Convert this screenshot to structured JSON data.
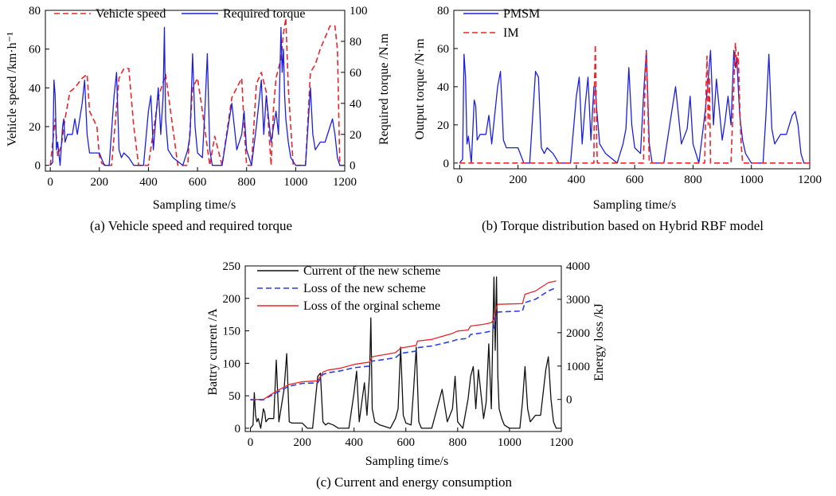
{
  "colors": {
    "red": "#e8262b",
    "blue": "#1c1fe0",
    "black": "#111111",
    "dblue": "#2b3fe8"
  },
  "captions": {
    "a": "(a) Vehicle speed and required torque",
    "b": "(b) Torque distribution based on Hybrid RBF model",
    "c": "(c) Current and energy consumption"
  },
  "chart_data": [
    {
      "id": "a",
      "type": "line",
      "xlabel": "Sampling time/s",
      "ylabel": "Vehicle speed /km·h⁻¹",
      "y2label": "Required torque /N.m",
      "xlim": [
        -20,
        1200
      ],
      "ylim": [
        -3,
        80
      ],
      "y2lim": [
        -3.75,
        100
      ],
      "xticks": [
        0,
        200,
        400,
        600,
        800,
        1000,
        1200
      ],
      "yticks": [
        0,
        20,
        40,
        60,
        80
      ],
      "y2ticks": [
        0,
        20,
        40,
        60,
        80,
        100
      ],
      "legend_position": "top",
      "series": [
        {
          "name": "Vehicle speed",
          "style": "dashed",
          "color": "#e8262b",
          "axis": "left",
          "x": [
            0,
            20,
            30,
            45,
            60,
            80,
            100,
            130,
            150,
            160,
            190,
            200,
            210,
            230,
            250,
            280,
            300,
            320,
            340,
            360,
            380,
            400,
            440,
            470,
            490,
            520,
            560,
            580,
            600,
            620,
            650,
            670,
            700,
            740,
            760,
            780,
            790,
            800,
            820,
            840,
            860,
            880,
            900,
            910,
            920,
            940,
            950,
            960,
            970,
            990,
            1000,
            1040,
            1060,
            1070,
            1080,
            1100,
            1140,
            1160,
            1170,
            1180,
            1200
          ],
          "y": [
            0,
            24,
            5,
            10,
            24,
            38,
            40,
            45,
            47,
            28,
            20,
            5,
            1,
            0,
            0,
            45,
            50,
            50,
            20,
            0,
            0,
            0,
            35,
            47,
            28,
            0,
            0,
            40,
            45,
            28,
            0,
            15,
            0,
            35,
            40,
            45,
            20,
            0,
            0,
            42,
            48,
            38,
            0,
            30,
            45,
            55,
            68,
            76,
            40,
            0,
            0,
            0,
            48,
            50,
            52,
            60,
            72,
            72,
            60,
            0,
            0
          ]
        },
        {
          "name": "Required torque",
          "style": "solid",
          "color": "#1c1fe0",
          "axis": "right",
          "x": [
            0,
            10,
            15,
            20,
            25,
            30,
            40,
            50,
            55,
            60,
            70,
            90,
            100,
            110,
            130,
            140,
            150,
            160,
            200,
            220,
            240,
            260,
            270,
            280,
            290,
            300,
            320,
            340,
            360,
            380,
            400,
            410,
            420,
            430,
            440,
            450,
            460,
            465,
            470,
            480,
            500,
            540,
            560,
            570,
            580,
            590,
            600,
            620,
            630,
            640,
            650,
            660,
            700,
            740,
            760,
            780,
            790,
            800,
            820,
            840,
            850,
            860,
            870,
            880,
            900,
            910,
            920,
            930,
            940,
            945,
            950,
            955,
            960,
            970,
            980,
            1000,
            1040,
            1050,
            1060,
            1070,
            1080,
            1100,
            1120,
            1140,
            1150,
            1160,
            1170,
            1180,
            1200
          ],
          "y": [
            0,
            2,
            55,
            45,
            10,
            15,
            0,
            25,
            30,
            15,
            20,
            20,
            30,
            20,
            40,
            55,
            20,
            8,
            8,
            0,
            0,
            45,
            60,
            10,
            5,
            8,
            5,
            0,
            0,
            0,
            35,
            45,
            10,
            30,
            50,
            20,
            45,
            89,
            30,
            10,
            5,
            0,
            10,
            20,
            72,
            25,
            8,
            5,
            35,
            72,
            10,
            0,
            0,
            40,
            10,
            20,
            35,
            10,
            0,
            25,
            40,
            55,
            20,
            45,
            15,
            25,
            35,
            20,
            89,
            60,
            75,
            45,
            30,
            15,
            5,
            0,
            0,
            25,
            50,
            20,
            10,
            15,
            15,
            25,
            30,
            20,
            5,
            0,
            0
          ]
        }
      ]
    },
    {
      "id": "b",
      "type": "line",
      "xlabel": "Sampling time/s",
      "ylabel": "Output torque /N·m",
      "xlim": [
        -20,
        1200
      ],
      "ylim": [
        -3,
        80
      ],
      "xticks": [
        0,
        200,
        400,
        600,
        800,
        1000,
        1200
      ],
      "yticks": [
        0,
        20,
        40,
        60,
        80
      ],
      "legend_position": "top-left",
      "series": [
        {
          "name": "PMSM",
          "style": "solid",
          "color": "#1c1fe0",
          "x": [
            0,
            10,
            15,
            20,
            25,
            30,
            40,
            50,
            55,
            60,
            70,
            90,
            100,
            110,
            130,
            140,
            150,
            160,
            200,
            220,
            240,
            260,
            270,
            280,
            290,
            300,
            320,
            340,
            360,
            380,
            400,
            410,
            420,
            430,
            440,
            450,
            460,
            465,
            470,
            480,
            500,
            540,
            560,
            570,
            580,
            590,
            600,
            620,
            630,
            640,
            650,
            660,
            700,
            740,
            760,
            780,
            790,
            800,
            820,
            840,
            850,
            860,
            870,
            880,
            900,
            910,
            920,
            930,
            940,
            945,
            950,
            955,
            960,
            970,
            980,
            1000,
            1040,
            1050,
            1060,
            1070,
            1080,
            1100,
            1120,
            1140,
            1150,
            1160,
            1170,
            1180,
            1200
          ],
          "y": [
            0,
            2,
            57,
            45,
            10,
            14,
            0,
            33,
            30,
            12,
            15,
            15,
            25,
            10,
            40,
            48,
            12,
            8,
            8,
            0,
            0,
            48,
            45,
            8,
            5,
            8,
            5,
            0,
            0,
            0,
            35,
            45,
            10,
            30,
            45,
            12,
            40,
            40,
            28,
            10,
            5,
            0,
            10,
            18,
            50,
            20,
            8,
            5,
            35,
            59,
            10,
            0,
            0,
            40,
            10,
            18,
            35,
            10,
            0,
            25,
            40,
            59,
            20,
            44,
            12,
            22,
            35,
            20,
            59,
            50,
            55,
            40,
            25,
            12,
            5,
            0,
            0,
            25,
            57,
            18,
            10,
            15,
            15,
            25,
            27,
            20,
            5,
            0,
            0
          ]
        },
        {
          "name": "IM",
          "style": "dashed",
          "color": "#e8262b",
          "x": [
            0,
            460,
            462,
            465,
            468,
            470,
            472,
            480,
            630,
            635,
            640,
            645,
            650,
            840,
            845,
            848,
            852,
            856,
            860,
            930,
            940,
            945,
            950,
            955,
            960,
            965,
            970,
            1200
          ],
          "y": [
            0,
            0,
            40,
            62,
            35,
            10,
            0,
            0,
            0,
            40,
            58,
            30,
            0,
            0,
            40,
            56,
            20,
            45,
            0,
            0,
            40,
            63,
            50,
            58,
            30,
            10,
            0,
            0
          ]
        }
      ]
    },
    {
      "id": "c",
      "type": "line",
      "xlabel": "Sampling time/s",
      "ylabel": "Battry current /A",
      "y2label": "Energy loss /kJ",
      "xlim": [
        -20,
        1200
      ],
      "ylim": [
        -5,
        250
      ],
      "y2lim": [
        -960,
        4000
      ],
      "xticks": [
        0,
        200,
        400,
        600,
        800,
        1000,
        1200
      ],
      "yticks": [
        0,
        50,
        100,
        150,
        200,
        250
      ],
      "y2ticks": [
        0,
        1000,
        2000,
        3000,
        4000
      ],
      "legend_position": "top-left",
      "series": [
        {
          "name": "Current of the new scheme",
          "style": "solid",
          "color": "#111111",
          "axis": "left",
          "x": [
            0,
            10,
            15,
            20,
            25,
            30,
            40,
            50,
            55,
            60,
            70,
            90,
            100,
            110,
            130,
            140,
            150,
            160,
            200,
            220,
            240,
            260,
            270,
            280,
            290,
            300,
            320,
            340,
            360,
            380,
            400,
            410,
            420,
            430,
            440,
            450,
            460,
            465,
            470,
            480,
            500,
            540,
            560,
            570,
            580,
            590,
            600,
            620,
            630,
            640,
            650,
            660,
            700,
            740,
            760,
            780,
            790,
            800,
            820,
            840,
            850,
            860,
            870,
            880,
            900,
            910,
            920,
            930,
            940,
            945,
            950,
            955,
            960,
            970,
            980,
            1000,
            1040,
            1050,
            1060,
            1070,
            1080,
            1100,
            1120,
            1140,
            1150,
            1160,
            1170,
            1180,
            1200
          ],
          "y": [
            0,
            5,
            55,
            20,
            10,
            15,
            0,
            30,
            25,
            10,
            15,
            15,
            105,
            10,
            60,
            115,
            10,
            8,
            8,
            0,
            0,
            80,
            85,
            10,
            5,
            8,
            5,
            0,
            0,
            0,
            55,
            88,
            10,
            40,
            70,
            20,
            85,
            170,
            30,
            10,
            5,
            0,
            15,
            30,
            125,
            20,
            8,
            5,
            60,
            125,
            10,
            0,
            0,
            60,
            10,
            30,
            80,
            10,
            0,
            45,
            80,
            95,
            30,
            90,
            15,
            40,
            130,
            30,
            233,
            120,
            233,
            80,
            30,
            15,
            5,
            0,
            0,
            40,
            95,
            30,
            10,
            20,
            20,
            90,
            110,
            45,
            10,
            0,
            0
          ]
        },
        {
          "name": "Loss of the new scheme",
          "style": "dashed",
          "color": "#2b3fe8",
          "axis": "right",
          "x": [
            0,
            50,
            100,
            150,
            200,
            260,
            280,
            300,
            350,
            400,
            460,
            470,
            500,
            560,
            580,
            640,
            645,
            700,
            780,
            800,
            840,
            850,
            900,
            930,
            940,
            950,
            955,
            1050,
            1060,
            1100,
            1150,
            1180
          ],
          "y": [
            -10,
            -10,
            200,
            400,
            480,
            500,
            750,
            800,
            860,
            950,
            1000,
            1150,
            1180,
            1250,
            1380,
            1450,
            1550,
            1600,
            1750,
            1800,
            1830,
            1950,
            2000,
            2050,
            2150,
            2550,
            2620,
            2650,
            2900,
            3000,
            3250,
            3350
          ]
        },
        {
          "name": "Loss of the orginal scheme",
          "style": "solid",
          "color": "#e8262b",
          "axis": "right",
          "x": [
            0,
            50,
            100,
            150,
            200,
            260,
            280,
            300,
            350,
            400,
            460,
            470,
            500,
            560,
            580,
            640,
            645,
            700,
            780,
            800,
            840,
            850,
            900,
            930,
            940,
            950,
            955,
            1050,
            1060,
            1100,
            1150,
            1180
          ],
          "y": [
            0,
            0,
            250,
            450,
            530,
            560,
            820,
            880,
            940,
            1050,
            1120,
            1280,
            1320,
            1400,
            1540,
            1620,
            1750,
            1800,
            1980,
            2050,
            2080,
            2200,
            2250,
            2300,
            2400,
            2780,
            2850,
            2870,
            3150,
            3250,
            3500,
            3550
          ]
        }
      ]
    }
  ]
}
